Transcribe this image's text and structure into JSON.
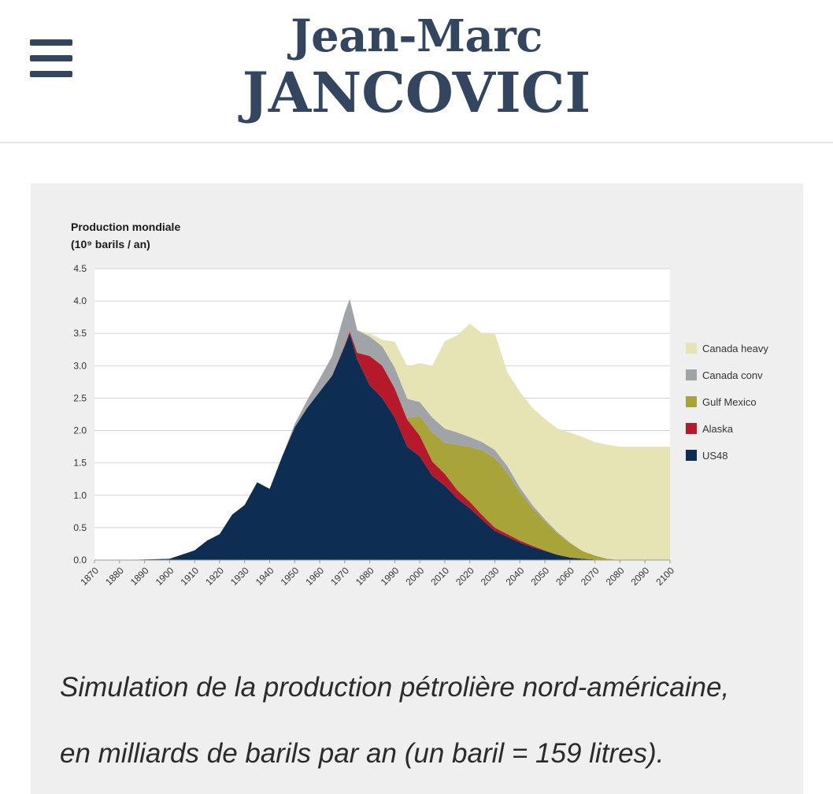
{
  "header": {
    "logo_line1": "Jean-Marc",
    "logo_line2": "JANCOVICI",
    "brand_color": "#33455f"
  },
  "figure": {
    "caption_line1": "Simulation de la production pétrolière nord-américaine,",
    "caption_line2": "en milliards de barils par an (un baril = 159 litres)."
  },
  "chart_data": {
    "type": "area",
    "stacked": true,
    "title": "",
    "ylabel_line1": "Production mondiale",
    "ylabel_line2": "(10⁹ barils / an)",
    "xlabel": "",
    "xlim": [
      1870,
      2100
    ],
    "ylim": [
      0,
      4.5
    ],
    "grid": true,
    "legend_position": "right",
    "x_ticks": [
      1870,
      1880,
      1890,
      1900,
      1910,
      1920,
      1930,
      1940,
      1950,
      1960,
      1970,
      1980,
      1990,
      2000,
      2010,
      2020,
      2030,
      2040,
      2050,
      2060,
      2070,
      2080,
      2090,
      2100
    ],
    "y_ticks": [
      "0.0",
      "0.5",
      "1.0",
      "1.5",
      "2.0",
      "2.5",
      "3.0",
      "3.5",
      "4.0",
      "4.5"
    ],
    "x": [
      1870,
      1880,
      1890,
      1900,
      1910,
      1915,
      1920,
      1925,
      1930,
      1935,
      1940,
      1945,
      1950,
      1955,
      1960,
      1965,
      1970,
      1972,
      1975,
      1980,
      1985,
      1990,
      1995,
      2000,
      2005,
      2010,
      2015,
      2020,
      2025,
      2030,
      2035,
      2040,
      2045,
      2050,
      2055,
      2060,
      2065,
      2070,
      2075,
      2080,
      2090,
      2100
    ],
    "series": [
      {
        "name": "US48",
        "color": "#0e2d52",
        "values": [
          0.0,
          0.0,
          0.01,
          0.02,
          0.15,
          0.3,
          0.4,
          0.7,
          0.85,
          1.2,
          1.1,
          1.6,
          2.05,
          2.35,
          2.6,
          2.85,
          3.3,
          3.5,
          3.1,
          2.7,
          2.5,
          2.2,
          1.75,
          1.6,
          1.3,
          1.15,
          0.95,
          0.8,
          0.62,
          0.45,
          0.36,
          0.27,
          0.2,
          0.14,
          0.08,
          0.04,
          0.02,
          0.01,
          0.0,
          0.0,
          0.0,
          0.0
        ]
      },
      {
        "name": "Alaska",
        "color": "#b5192a",
        "values": [
          0,
          0,
          0,
          0,
          0,
          0,
          0,
          0,
          0,
          0,
          0,
          0,
          0,
          0,
          0,
          0,
          0.02,
          0.03,
          0.1,
          0.45,
          0.5,
          0.45,
          0.42,
          0.32,
          0.22,
          0.18,
          0.13,
          0.1,
          0.07,
          0.05,
          0.04,
          0.03,
          0.02,
          0.01,
          0.0,
          0,
          0,
          0,
          0,
          0,
          0,
          0
        ]
      },
      {
        "name": "Gulf Mexico",
        "color": "#a8a43a",
        "values": [
          0,
          0,
          0,
          0,
          0,
          0,
          0,
          0,
          0,
          0,
          0,
          0,
          0,
          0,
          0,
          0,
          0,
          0,
          0,
          0,
          0,
          0,
          0.02,
          0.3,
          0.45,
          0.48,
          0.7,
          0.85,
          1.0,
          1.08,
          0.95,
          0.75,
          0.58,
          0.45,
          0.33,
          0.22,
          0.12,
          0.06,
          0.02,
          0.0,
          0,
          0
        ]
      },
      {
        "name": "Canada conv",
        "color": "#a0a3a8",
        "values": [
          0,
          0,
          0,
          0,
          0,
          0,
          0,
          0,
          0,
          0,
          0,
          0,
          0.05,
          0.12,
          0.2,
          0.3,
          0.5,
          0.5,
          0.35,
          0.3,
          0.3,
          0.32,
          0.3,
          0.22,
          0.23,
          0.22,
          0.19,
          0.15,
          0.13,
          0.12,
          0.1,
          0.07,
          0.05,
          0.03,
          0.02,
          0.01,
          0,
          0,
          0,
          0,
          0,
          0
        ]
      },
      {
        "name": "Canada heavy",
        "color": "#e6e4b4",
        "values": [
          0,
          0,
          0,
          0,
          0,
          0,
          0,
          0,
          0,
          0,
          0,
          0,
          0,
          0,
          0,
          0,
          0,
          0,
          0,
          0.05,
          0.1,
          0.4,
          0.5,
          0.6,
          0.8,
          1.35,
          1.5,
          1.75,
          1.68,
          1.8,
          1.45,
          1.48,
          1.5,
          1.55,
          1.6,
          1.7,
          1.76,
          1.75,
          1.76,
          1.75,
          1.75,
          1.75
        ]
      }
    ]
  }
}
